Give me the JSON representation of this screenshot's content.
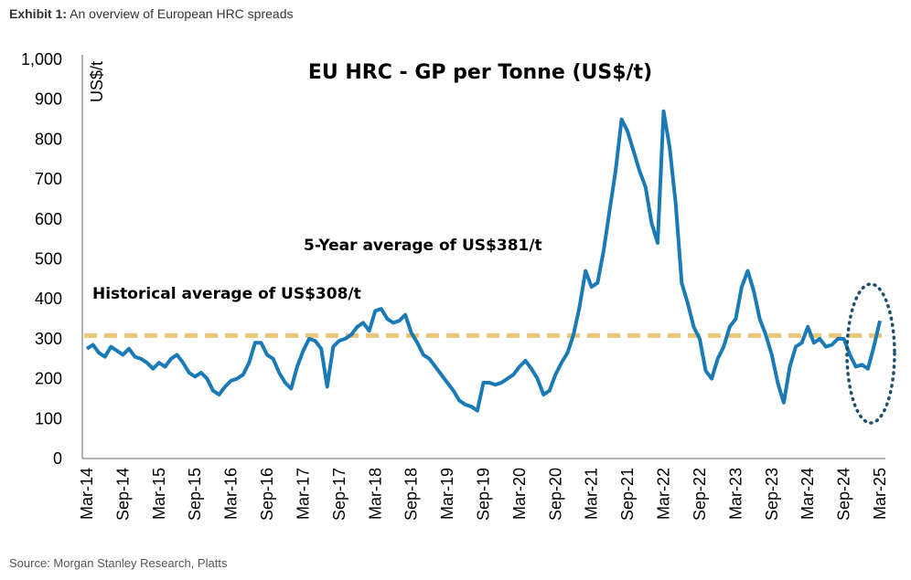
{
  "header": {
    "label": "Exhibit 1:",
    "text": "An overview of European HRC spreads"
  },
  "source": "Source: Morgan Stanley Research, Platts",
  "chart_data": {
    "type": "line",
    "title": "EU HRC - GP per Tonne (US$/t)",
    "ylabel": "US$/t",
    "xlabel": "",
    "ylim": [
      0,
      1000
    ],
    "yticks": [
      0,
      100,
      200,
      300,
      400,
      500,
      600,
      700,
      800,
      900,
      1000
    ],
    "ytick_labels": [
      "0",
      "100",
      "200",
      "300",
      "400",
      "500",
      "600",
      "700",
      "800",
      "900",
      "1,000"
    ],
    "xtick_labels": [
      "Mar-14",
      "Sep-14",
      "Mar-15",
      "Sep-15",
      "Mar-16",
      "Sep-16",
      "Mar-17",
      "Sep-17",
      "Mar-18",
      "Sep-18",
      "Mar-19",
      "Sep-19",
      "Mar-20",
      "Sep-20",
      "Mar-21",
      "Sep-21",
      "Mar-22",
      "Sep-22",
      "Mar-23",
      "Sep-23",
      "Mar-24",
      "Sep-24",
      "Mar-25"
    ],
    "x_start": "Mar-14",
    "x_step": "monthly",
    "grid": false,
    "series": [
      {
        "name": "EU HRC GP per tonne",
        "color": "#1a7ab5",
        "values": [
          275,
          285,
          265,
          255,
          280,
          270,
          260,
          275,
          255,
          250,
          240,
          225,
          240,
          230,
          250,
          260,
          240,
          215,
          205,
          215,
          200,
          170,
          160,
          180,
          195,
          200,
          210,
          240,
          290,
          290,
          260,
          250,
          215,
          190,
          175,
          230,
          270,
          300,
          295,
          275,
          180,
          280,
          295,
          300,
          310,
          330,
          340,
          320,
          370,
          375,
          350,
          340,
          345,
          360,
          315,
          290,
          260,
          250,
          230,
          210,
          190,
          170,
          145,
          135,
          130,
          120,
          190,
          190,
          185,
          190,
          200,
          210,
          230,
          245,
          225,
          200,
          160,
          170,
          210,
          240,
          265,
          310,
          380,
          470,
          430,
          440,
          520,
          620,
          720,
          850,
          820,
          770,
          720,
          680,
          590,
          540,
          870,
          780,
          640,
          440,
          390,
          330,
          300,
          220,
          200,
          250,
          280,
          330,
          350,
          430,
          470,
          420,
          350,
          310,
          260,
          190,
          140,
          230,
          280,
          290,
          330,
          290,
          300,
          280,
          285,
          300,
          300,
          260,
          230,
          235,
          225,
          280,
          345
        ]
      }
    ],
    "reference_lines": [
      {
        "name": "Historical average",
        "value": 308,
        "color": "#E8C77A",
        "label": "Historical average of US$308/t"
      }
    ],
    "annotations": [
      "5-Year average of US$381/t"
    ],
    "highlight": "dotted ellipse around latest data (Sep-24 to Mar-25)"
  }
}
